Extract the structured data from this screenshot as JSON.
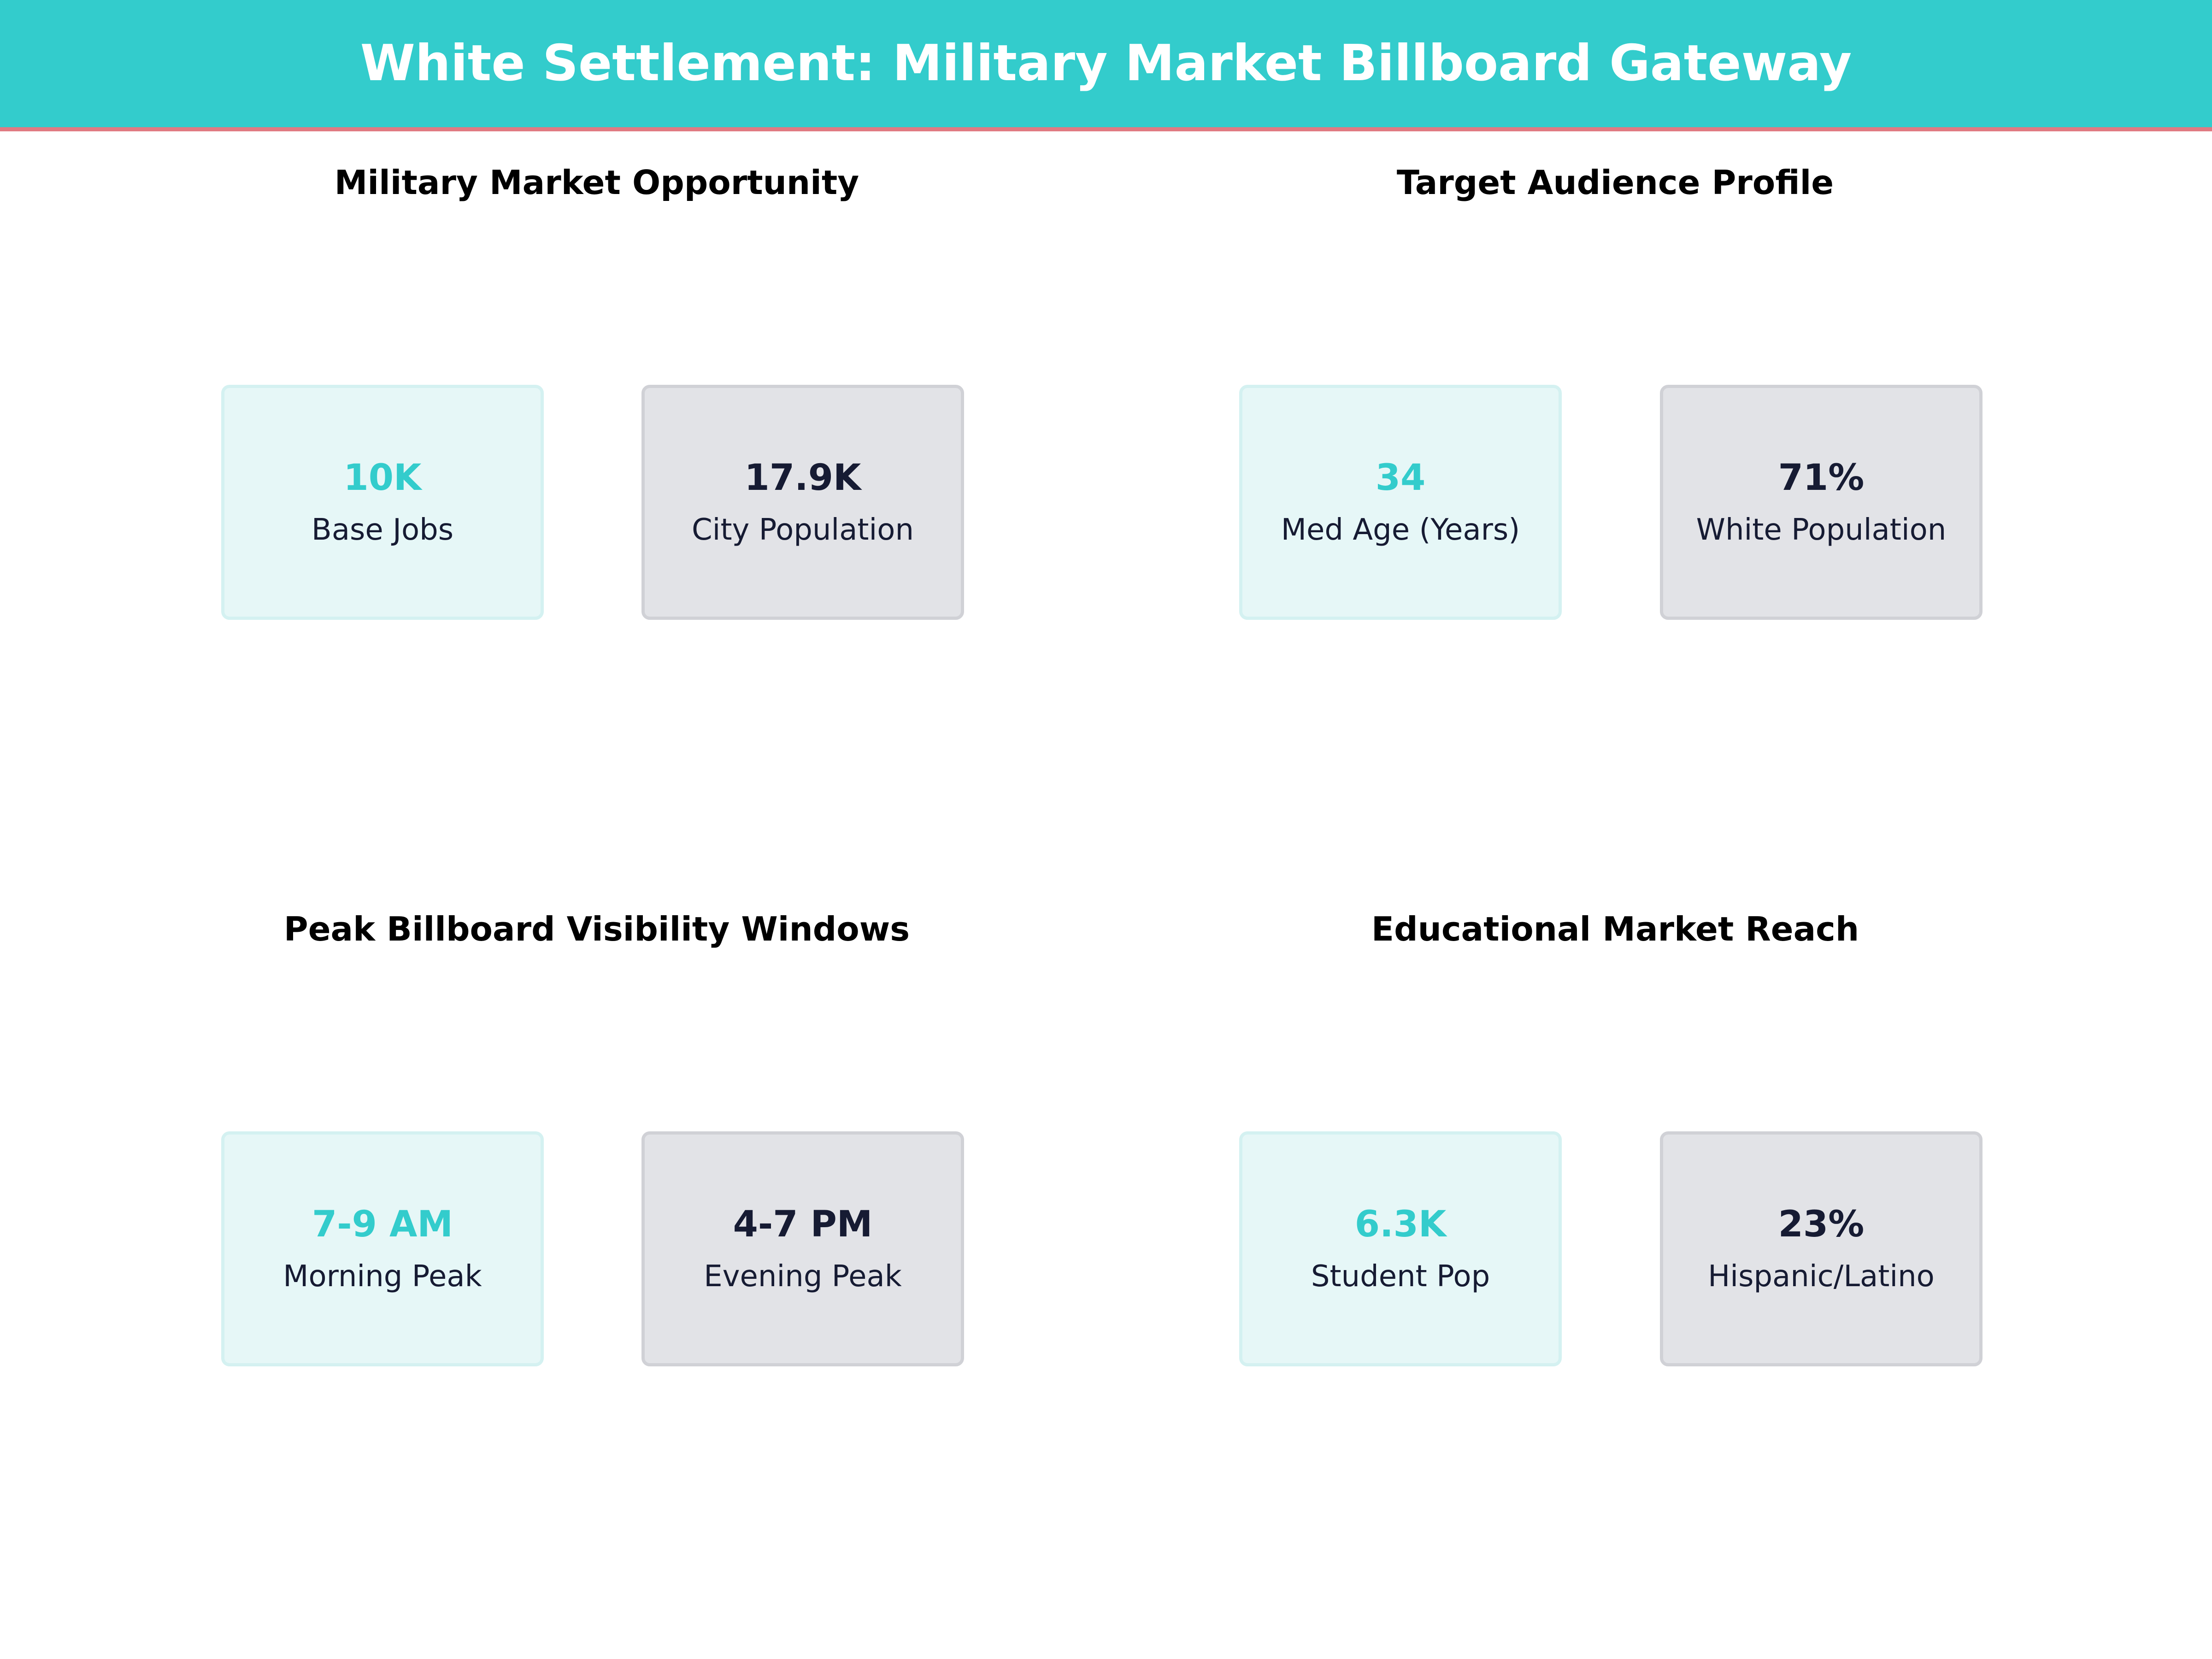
{
  "header": {
    "title": "White Settlement: Military Market Billboard Gateway",
    "background_color": "#33cccc",
    "underline_color": "#e07a82"
  },
  "colors": {
    "accent": "#33cccc",
    "dark_text": "#161b33",
    "accent_card_bg": "#e6f7f7",
    "muted_card_bg": "#e2e3e7"
  },
  "panels": [
    {
      "title": "Military Market Opportunity",
      "cards": [
        {
          "value": "10K",
          "label": "Base Jobs",
          "style": "accent"
        },
        {
          "value": "17.9K",
          "label": "City Population",
          "style": "muted"
        }
      ]
    },
    {
      "title": "Target Audience Profile",
      "cards": [
        {
          "value": "34",
          "label": "Med Age (Years)",
          "style": "accent"
        },
        {
          "value": "71%",
          "label": "White Population",
          "style": "muted"
        }
      ]
    },
    {
      "title": "Peak Billboard Visibility Windows",
      "cards": [
        {
          "value": "7-9 AM",
          "label": "Morning Peak",
          "style": "accent"
        },
        {
          "value": "4-7 PM",
          "label": "Evening Peak",
          "style": "muted"
        }
      ]
    },
    {
      "title": "Educational Market Reach",
      "cards": [
        {
          "value": "6.3K",
          "label": "Student Pop",
          "style": "accent"
        },
        {
          "value": "23%",
          "label": "Hispanic/Latino",
          "style": "muted"
        }
      ]
    }
  ]
}
